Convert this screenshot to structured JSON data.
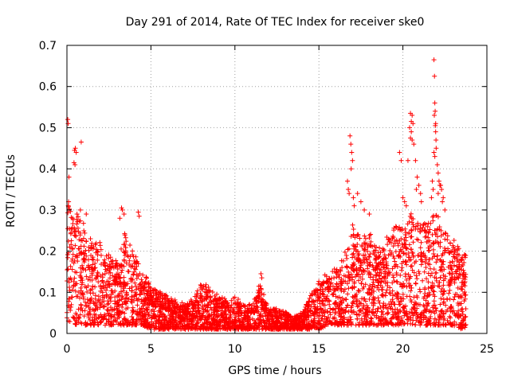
{
  "chart_data": {
    "type": "scatter",
    "title": "Day 291 of 2014, Rate Of TEC Index for receiver ske0",
    "xlabel": "GPS time / hours",
    "ylabel": "ROTI / TECUs",
    "xlim": [
      0,
      25
    ],
    "ylim": [
      0,
      0.7
    ],
    "xticks": [
      0,
      5,
      10,
      15,
      20,
      25
    ],
    "xtick_labels": [
      "0",
      "5",
      "10",
      "15",
      "20",
      "25"
    ],
    "yticks": [
      0,
      0.1,
      0.2,
      0.3,
      0.4,
      0.5,
      0.6,
      0.7
    ],
    "ytick_labels": [
      "0",
      "0.1",
      "0.2",
      "0.3",
      "0.4",
      "0.5",
      "0.6",
      "0.7"
    ],
    "grid": true,
    "marker": "+",
    "series_color": "#ff0000",
    "envelope": {
      "description": "approximate per-hour range of ROTI values read from the plot",
      "hours": [
        0,
        0.5,
        1,
        1.5,
        2,
        2.5,
        3,
        3.5,
        4,
        4.5,
        5,
        5.5,
        6,
        6.5,
        7,
        7.5,
        8,
        8.5,
        9,
        9.5,
        10,
        10.5,
        11,
        11.5,
        12,
        12.5,
        13,
        13.5,
        14,
        14.5,
        15,
        15.5,
        16,
        16.5,
        17,
        17.5,
        18,
        18.5,
        19,
        19.5,
        20,
        20.5,
        21,
        21.5,
        22,
        22.5,
        23,
        23.5,
        23.75
      ],
      "upper": [
        0.3,
        0.27,
        0.28,
        0.22,
        0.21,
        0.19,
        0.18,
        0.24,
        0.2,
        0.15,
        0.11,
        0.1,
        0.09,
        0.08,
        0.07,
        0.08,
        0.12,
        0.11,
        0.09,
        0.08,
        0.09,
        0.07,
        0.07,
        0.12,
        0.06,
        0.06,
        0.05,
        0.04,
        0.05,
        0.09,
        0.13,
        0.14,
        0.16,
        0.18,
        0.26,
        0.22,
        0.24,
        0.2,
        0.22,
        0.26,
        0.27,
        0.29,
        0.28,
        0.26,
        0.3,
        0.25,
        0.22,
        0.2,
        0.19
      ],
      "lower": [
        0.03,
        0.02,
        0.02,
        0.02,
        0.02,
        0.02,
        0.02,
        0.02,
        0.02,
        0.02,
        0.01,
        0.01,
        0.01,
        0.01,
        0.01,
        0.01,
        0.01,
        0.01,
        0.01,
        0.01,
        0.01,
        0.01,
        0.01,
        0.01,
        0.01,
        0.01,
        0.01,
        0.01,
        0.01,
        0.01,
        0.01,
        0.02,
        0.02,
        0.02,
        0.02,
        0.02,
        0.02,
        0.02,
        0.02,
        0.02,
        0.02,
        0.02,
        0.02,
        0.02,
        0.02,
        0.02,
        0.02,
        0.01,
        0.01
      ]
    },
    "outliers": [
      [
        0.05,
        0.52
      ],
      [
        0.07,
        0.51
      ],
      [
        0.12,
        0.38
      ],
      [
        0.1,
        0.32
      ],
      [
        0.08,
        0.31
      ],
      [
        0.45,
        0.445
      ],
      [
        0.5,
        0.45
      ],
      [
        0.55,
        0.44
      ],
      [
        0.42,
        0.415
      ],
      [
        0.48,
        0.41
      ],
      [
        0.85,
        0.465
      ],
      [
        0.8,
        0.3
      ],
      [
        1.15,
        0.29
      ],
      [
        0.6,
        0.29
      ],
      [
        3.25,
        0.305
      ],
      [
        3.3,
        0.3
      ],
      [
        3.4,
        0.29
      ],
      [
        3.15,
        0.28
      ],
      [
        4.25,
        0.295
      ],
      [
        4.3,
        0.285
      ],
      [
        11.55,
        0.145
      ],
      [
        11.6,
        0.135
      ],
      [
        16.85,
        0.48
      ],
      [
        16.9,
        0.46
      ],
      [
        16.95,
        0.44
      ],
      [
        17.0,
        0.42
      ],
      [
        16.92,
        0.4
      ],
      [
        16.7,
        0.37
      ],
      [
        16.75,
        0.35
      ],
      [
        16.8,
        0.34
      ],
      [
        17.05,
        0.33
      ],
      [
        17.1,
        0.31
      ],
      [
        17.3,
        0.34
      ],
      [
        17.5,
        0.32
      ],
      [
        17.7,
        0.3
      ],
      [
        18.0,
        0.29
      ],
      [
        19.8,
        0.44
      ],
      [
        19.9,
        0.42
      ],
      [
        20.0,
        0.33
      ],
      [
        20.1,
        0.32
      ],
      [
        20.2,
        0.31
      ],
      [
        20.45,
        0.535
      ],
      [
        20.55,
        0.53
      ],
      [
        20.5,
        0.515
      ],
      [
        20.6,
        0.51
      ],
      [
        20.4,
        0.5
      ],
      [
        20.5,
        0.49
      ],
      [
        20.45,
        0.475
      ],
      [
        20.55,
        0.47
      ],
      [
        20.65,
        0.46
      ],
      [
        20.3,
        0.42
      ],
      [
        20.75,
        0.42
      ],
      [
        20.85,
        0.38
      ],
      [
        20.95,
        0.36
      ],
      [
        21.05,
        0.34
      ],
      [
        20.8,
        0.35
      ],
      [
        21.1,
        0.32
      ],
      [
        21.85,
        0.665
      ],
      [
        21.88,
        0.625
      ],
      [
        21.9,
        0.56
      ],
      [
        21.92,
        0.54
      ],
      [
        21.87,
        0.53
      ],
      [
        21.95,
        0.51
      ],
      [
        21.93,
        0.505
      ],
      [
        21.95,
        0.49
      ],
      [
        21.97,
        0.47
      ],
      [
        21.98,
        0.45
      ],
      [
        21.85,
        0.44
      ],
      [
        21.9,
        0.43
      ],
      [
        22.05,
        0.41
      ],
      [
        22.1,
        0.39
      ],
      [
        22.15,
        0.37
      ],
      [
        22.2,
        0.36
      ],
      [
        22.25,
        0.36
      ],
      [
        22.3,
        0.35
      ],
      [
        22.1,
        0.34
      ],
      [
        22.4,
        0.33
      ],
      [
        21.75,
        0.37
      ],
      [
        21.8,
        0.35
      ],
      [
        21.7,
        0.33
      ],
      [
        22.5,
        0.3
      ],
      [
        22.35,
        0.32
      ]
    ]
  }
}
